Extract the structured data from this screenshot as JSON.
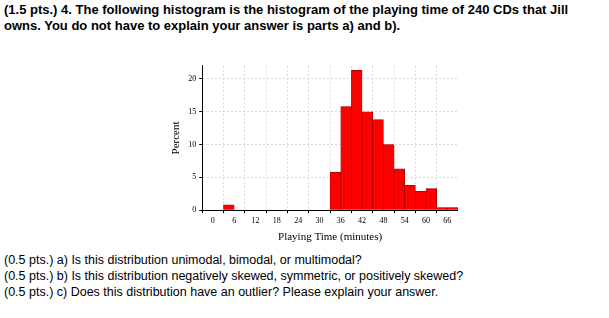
{
  "header": "(1.5 pts.) 4. The following histogram is the histogram of the playing time of 240 CDs that Jill owns. You do not have to explain your answer is parts a) and b).",
  "chart_data": {
    "type": "histogram",
    "x_label": "Playing Time (minutes)",
    "y_label": "Percent",
    "bins": [
      3,
      6,
      9,
      12,
      15,
      18,
      21,
      24,
      27,
      30,
      33,
      36,
      39,
      42,
      45,
      48,
      51,
      54,
      57,
      60,
      63,
      66,
      69
    ],
    "values": [
      0.83,
      0,
      0,
      0,
      0,
      0,
      0,
      0,
      0,
      0,
      5.8,
      15.8,
      21.3,
      15,
      13.8,
      10,
      6.3,
      3.8,
      2.9,
      3.3,
      0.4,
      0.4
    ],
    "color": "#ff0000",
    "xlim": [
      -3,
      69
    ],
    "xticks": [
      0,
      6,
      12,
      18,
      24,
      30,
      36,
      42,
      48,
      54,
      60,
      66
    ],
    "ylim": [
      0,
      22
    ],
    "yticks": [
      0,
      5,
      10,
      15,
      20
    ],
    "grid": true
  },
  "questions": [
    "(0.5 pts.) a) Is this distribution unimodal, bimodal, or multimodal?",
    "(0.5 pts.) b) Is this distribution negatively skewed, symmetric, or positively skewed?",
    "(0.5 pts.) c) Does this distribution have an outlier? Please explain your answer."
  ]
}
